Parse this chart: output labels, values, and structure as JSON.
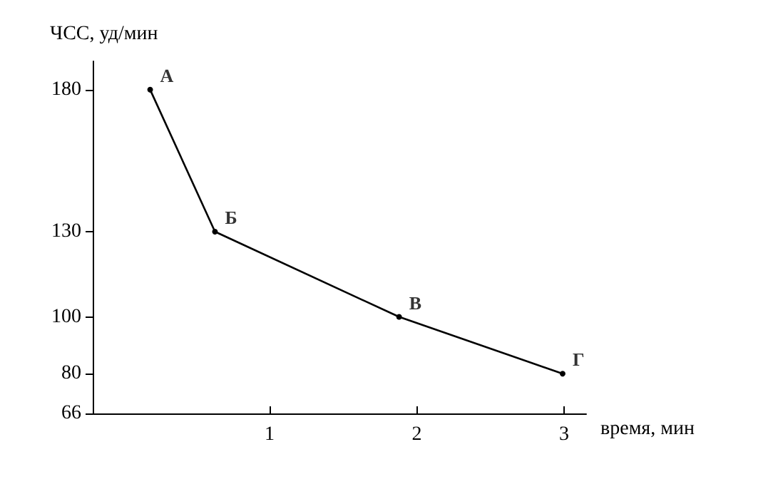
{
  "chart_data": {
    "type": "line",
    "xlabel": "время, мин",
    "ylabel": "ЧСС, уд/мин",
    "x": [
      0.19,
      0.63,
      1.88,
      2.99
    ],
    "series": [
      {
        "color": "#000000",
        "values": [
          180,
          130,
          100,
          80
        ]
      }
    ],
    "xlim": [
      -0.2,
      3.15
    ],
    "xticks": [
      1,
      2,
      3
    ],
    "ylim": [
      66,
      190
    ],
    "yticks": [
      66,
      80,
      100,
      130,
      180
    ],
    "marker": "circle",
    "line_style": "solid",
    "grid": false,
    "annotations": [
      {
        "text": "А",
        "x": 0.19,
        "y": 180
      },
      {
        "text": "Б",
        "x": 0.63,
        "y": 130
      },
      {
        "text": "В",
        "x": 1.88,
        "y": 100
      },
      {
        "text": "Г",
        "x": 2.99,
        "y": 80
      }
    ]
  }
}
